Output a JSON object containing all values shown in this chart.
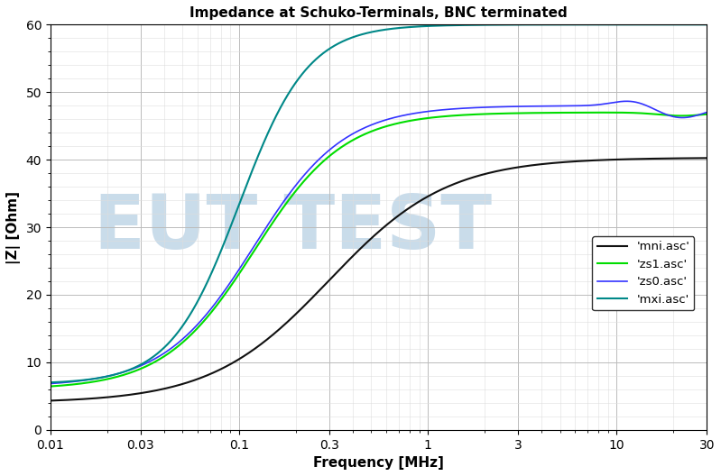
{
  "title": "Impedance at Schuko-Terminals, BNC terminated",
  "xlabel": "Frequency [MHz]",
  "ylabel": "|Z| [Ohm]",
  "xlim": [
    0.01,
    30
  ],
  "ylim": [
    0,
    60
  ],
  "yticks": [
    0,
    10,
    20,
    30,
    40,
    50,
    60
  ],
  "xticks": [
    0.01,
    0.03,
    0.1,
    0.3,
    1,
    3,
    10,
    30
  ],
  "xtick_labels": [
    "0.01",
    "0.03",
    "0.1",
    "0.3",
    "1",
    "3",
    "10",
    "30"
  ],
  "legend_labels": [
    "'zs0.asc'",
    "'zs1.asc'",
    "'mxi.asc'",
    "'mni.asc'"
  ],
  "colors_zs0": "#3333ff",
  "colors_zs1": "#00dd00",
  "colors_mxi": "#008888",
  "colors_mni": "#111111",
  "watermark_text": "EUT TEST",
  "watermark_color": "#7aa8cc",
  "watermark_alpha": 0.4,
  "background_color": "#ffffff",
  "grid_major_color": "#bbbbbb",
  "grid_minor_color": "#dddddd",
  "title_fontsize": 11,
  "label_fontsize": 11,
  "tick_fontsize": 10
}
